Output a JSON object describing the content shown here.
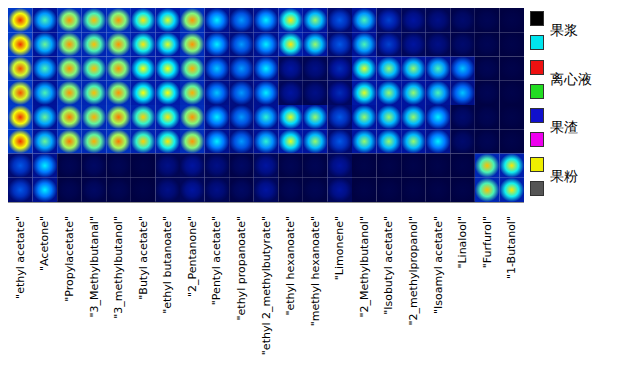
{
  "chart_data": {
    "type": "heatmap",
    "tick_labels": "x",
    "x_labels": [
      "\"ethyl acetate\"",
      "\"Acetone\"",
      "\"Propylacetate\"",
      "\"3_Methylbutanal\"",
      "\"3_methylbutanol\"",
      "\"Butyl acetate\"",
      "\"ethyl butanoate\"",
      "\"2_Pentanone\"",
      "\"Pentyl acetate\"",
      "\"ethyl propanoate\"",
      "\"ethyl 2_methylbutyrate\"",
      "\"ethyl hexanoate\"",
      "\"methyl hexanoate\"",
      "\"Limonene\"",
      "\"2_Methylbutanol\"",
      "\"Isobutyl acetate\"",
      "\"2_methylpropanol\"",
      "\"Isoamyl acetate\"",
      "\"Linalool\"",
      "\"Furfurol\"",
      "\"1-Butanol\""
    ],
    "groups": [
      {
        "name": "果浆",
        "colors": [
          "#000000",
          "#00e5ee"
        ]
      },
      {
        "name": "离心液",
        "colors": [
          "#ee1111",
          "#22dd22"
        ]
      },
      {
        "name": "果渣",
        "colors": [
          "#1010cc",
          "#ee00ee"
        ]
      },
      {
        "name": "果粉",
        "colors": [
          "#eeee00",
          "#555555"
        ]
      }
    ],
    "cell_range": [
      0,
      100
    ],
    "cells": [
      [
        95,
        60,
        85,
        80,
        85,
        75,
        70,
        85,
        55,
        45,
        55,
        75,
        65,
        35,
        60,
        30,
        20,
        15,
        10,
        5,
        3
      ],
      [
        95,
        62,
        85,
        80,
        85,
        75,
        70,
        85,
        55,
        45,
        55,
        75,
        65,
        35,
        60,
        30,
        20,
        15,
        10,
        5,
        3
      ],
      [
        92,
        60,
        85,
        80,
        85,
        72,
        72,
        82,
        50,
        45,
        55,
        20,
        15,
        25,
        70,
        65,
        65,
        60,
        50,
        5,
        3
      ],
      [
        92,
        60,
        85,
        80,
        85,
        72,
        72,
        82,
        50,
        45,
        55,
        20,
        15,
        25,
        70,
        65,
        65,
        60,
        50,
        5,
        3
      ],
      [
        95,
        62,
        88,
        82,
        88,
        78,
        75,
        85,
        55,
        45,
        58,
        70,
        65,
        35,
        65,
        65,
        65,
        55,
        10,
        5,
        3
      ],
      [
        95,
        62,
        88,
        82,
        88,
        78,
        75,
        85,
        55,
        45,
        58,
        70,
        65,
        35,
        65,
        65,
        65,
        55,
        10,
        5,
        3
      ],
      [
        35,
        55,
        5,
        8,
        5,
        3,
        15,
        20,
        15,
        8,
        20,
        5,
        5,
        20,
        3,
        3,
        3,
        3,
        3,
        80,
        75
      ],
      [
        35,
        55,
        5,
        8,
        5,
        3,
        15,
        20,
        15,
        8,
        20,
        5,
        5,
        20,
        3,
        3,
        3,
        3,
        3,
        80,
        75
      ]
    ]
  }
}
